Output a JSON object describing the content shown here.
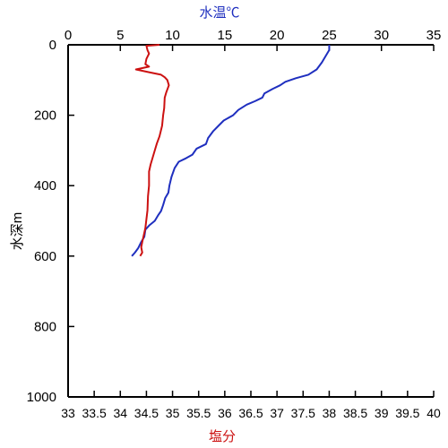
{
  "chart_data": {
    "type": "line",
    "title": "",
    "axes": {
      "x_top": {
        "label": "水温℃",
        "range": [
          0,
          35
        ],
        "ticks": [
          0,
          5,
          10,
          15,
          20,
          25,
          30,
          35
        ],
        "tick_labels": [
          "0",
          "5",
          "10",
          "15",
          "20",
          "25",
          "30",
          "35"
        ],
        "color": "#1f2fbf"
      },
      "x_bottom": {
        "label": "塩分",
        "range": [
          33,
          40
        ],
        "ticks": [
          33,
          33.5,
          34,
          34.5,
          35,
          35.5,
          36,
          36.5,
          37,
          37.5,
          38,
          38.5,
          39,
          39.5,
          40
        ],
        "tick_labels": [
          "33",
          "33.5",
          "34",
          "34.5",
          "35",
          "35.5",
          "36",
          "36.5",
          "37",
          "37.5",
          "38",
          "38.5",
          "39",
          "39.5",
          "40"
        ],
        "color": "#cc1111"
      },
      "y_left": {
        "label": "水深m",
        "range": [
          0,
          1000
        ],
        "inverted": true,
        "ticks": [
          0,
          200,
          400,
          600,
          800,
          1000
        ],
        "tick_labels": [
          "0",
          "200",
          "400",
          "600",
          "800",
          "1000"
        ]
      }
    },
    "grid": false,
    "series": [
      {
        "axis": "x_top",
        "color": "#1f2fbf",
        "points": [
          [
            25.0,
            0
          ],
          [
            25.0,
            15
          ],
          [
            24.7,
            30
          ],
          [
            24.3,
            50
          ],
          [
            23.8,
            70
          ],
          [
            23.0,
            85
          ],
          [
            21.8,
            95
          ],
          [
            20.8,
            105
          ],
          [
            20.3,
            115
          ],
          [
            19.6,
            125
          ],
          [
            18.8,
            138
          ],
          [
            18.6,
            150
          ],
          [
            17.9,
            160
          ],
          [
            17.1,
            170
          ],
          [
            16.3,
            185
          ],
          [
            15.8,
            200
          ],
          [
            14.9,
            215
          ],
          [
            14.4,
            230
          ],
          [
            13.9,
            245
          ],
          [
            13.4,
            265
          ],
          [
            13.2,
            282
          ],
          [
            12.3,
            295
          ],
          [
            11.9,
            312
          ],
          [
            11.3,
            322
          ],
          [
            10.6,
            332
          ],
          [
            10.2,
            350
          ],
          [
            9.9,
            375
          ],
          [
            9.7,
            400
          ],
          [
            9.6,
            420
          ],
          [
            9.3,
            435
          ],
          [
            9.1,
            455
          ],
          [
            8.9,
            472
          ],
          [
            8.6,
            485
          ],
          [
            8.3,
            500
          ],
          [
            7.8,
            512
          ],
          [
            7.4,
            525
          ],
          [
            7.3,
            545
          ],
          [
            7.0,
            560
          ],
          [
            6.7,
            578
          ],
          [
            6.4,
            590
          ],
          [
            6.1,
            600
          ]
        ]
      },
      {
        "axis": "x_bottom",
        "color": "#cc1111",
        "points": [
          [
            34.75,
            0
          ],
          [
            34.5,
            3
          ],
          [
            34.52,
            15
          ],
          [
            34.55,
            25
          ],
          [
            34.5,
            40
          ],
          [
            34.48,
            55
          ],
          [
            34.55,
            62
          ],
          [
            34.3,
            70
          ],
          [
            34.55,
            78
          ],
          [
            34.78,
            85
          ],
          [
            34.85,
            92
          ],
          [
            34.9,
            100
          ],
          [
            34.93,
            115
          ],
          [
            34.88,
            135
          ],
          [
            34.85,
            150
          ],
          [
            34.84,
            180
          ],
          [
            34.82,
            200
          ],
          [
            34.8,
            230
          ],
          [
            34.75,
            260
          ],
          [
            34.7,
            280
          ],
          [
            34.66,
            300
          ],
          [
            34.62,
            320
          ],
          [
            34.58,
            340
          ],
          [
            34.55,
            360
          ],
          [
            34.55,
            400
          ],
          [
            34.53,
            430
          ],
          [
            34.52,
            470
          ],
          [
            34.48,
            520
          ],
          [
            34.42,
            560
          ],
          [
            34.4,
            575
          ],
          [
            34.42,
            590
          ],
          [
            34.38,
            600
          ]
        ]
      }
    ]
  }
}
